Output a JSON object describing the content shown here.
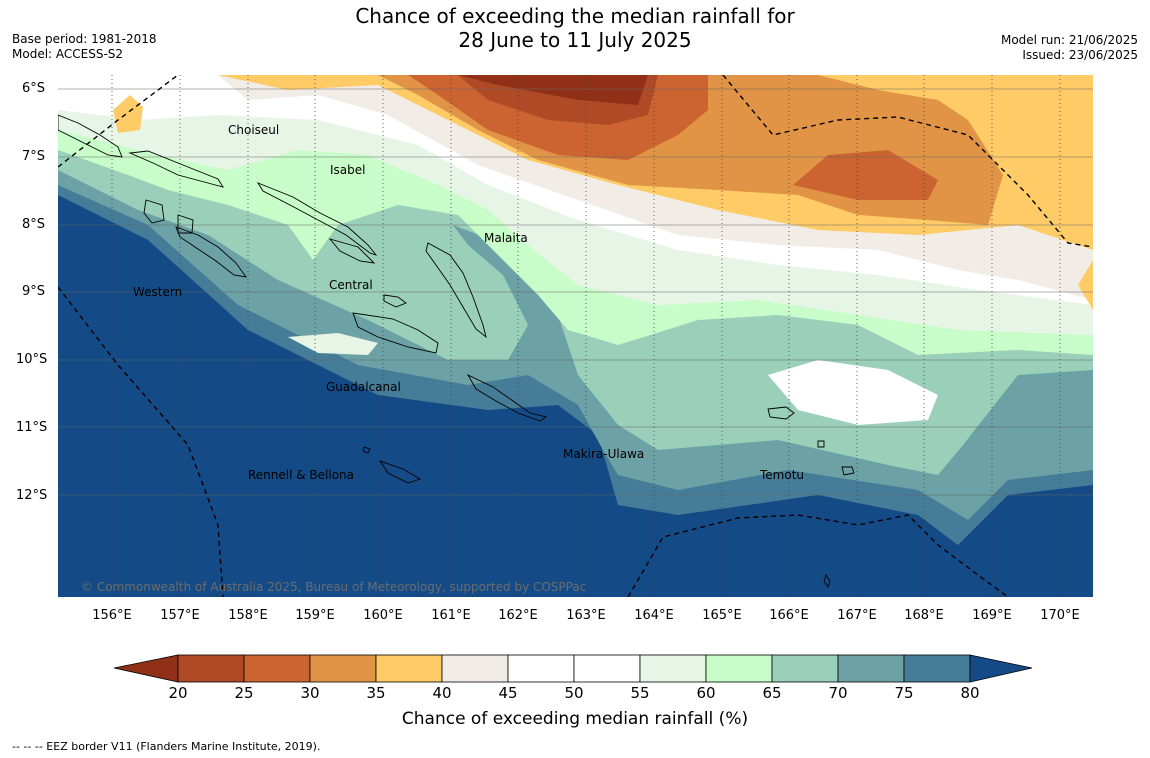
{
  "title_line1": "Chance of exceeding the median rainfall for",
  "title_line2": "28 June to 11 July 2025",
  "meta_left": [
    "Base period: 1981-2018",
    "Model: ACCESS-S2"
  ],
  "meta_right": [
    "Model run: 21/06/2025",
    "Issued: 23/06/2025"
  ],
  "lat_labels": [
    "6°S",
    "7°S",
    "8°S",
    "9°S",
    "10°S",
    "11°S",
    "12°S"
  ],
  "lon_labels": [
    "156°E",
    "157°E",
    "158°E",
    "159°E",
    "160°E",
    "161°E",
    "162°E",
    "163°E",
    "164°E",
    "165°E",
    "166°E",
    "167°E",
    "168°E",
    "169°E",
    "170°E"
  ],
  "province_labels": [
    "Choiseul",
    "Isabel",
    "Malaita",
    "Central",
    "Western",
    "Guadalcanal",
    "Makira-Ulawa",
    "Rennell & Bellona",
    "Temotu"
  ],
  "copyright": "© Commonwealth of Australia 2025, Bureau of Meteorology, supported by COSPPac",
  "colorbar": {
    "ticks": [
      "20",
      "25",
      "30",
      "35",
      "40",
      "45",
      "50",
      "55",
      "60",
      "65",
      "70",
      "75",
      "80"
    ],
    "label": "Chance of exceeding median rainfall (%)",
    "colors": [
      "#8f3017",
      "#b04a26",
      "#cc6431",
      "#e29446",
      "#fecb66",
      "#f1ede6",
      "#ffffff",
      "#ffffff",
      "#e7f5e7",
      "#c8fcc8",
      "#9acfb9",
      "#6ca1a6",
      "#457d99",
      "#144b86"
    ]
  },
  "eez_note": "--  --  -- EEZ border V11 (Flanders Marine Institute, 2019)."
}
